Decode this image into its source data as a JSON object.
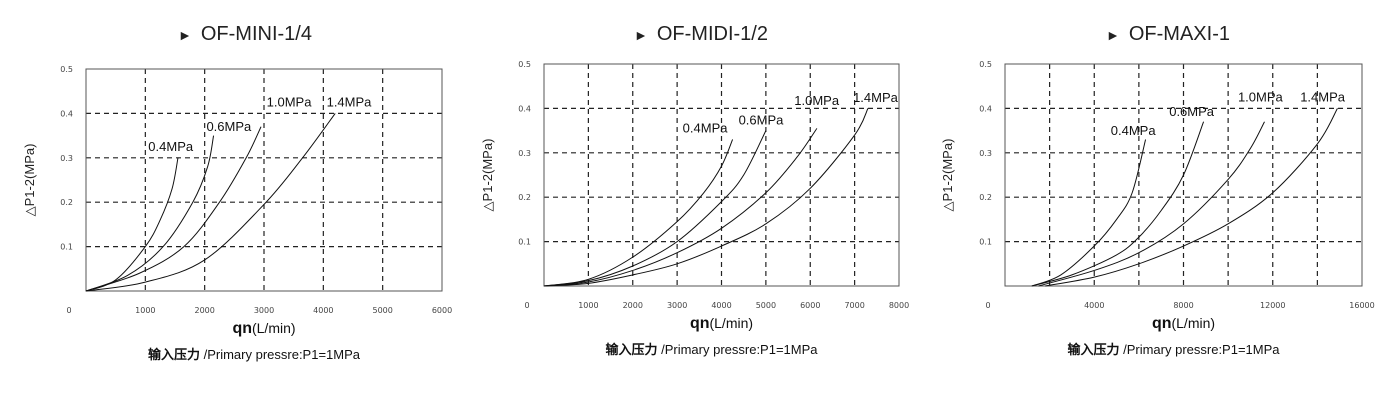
{
  "chart_data": [
    {
      "type": "line",
      "title": "OF-MINI-1/4",
      "title_marker": "►",
      "xlabel_bold": "qn",
      "xlabel_unit": "(L/min)",
      "ylabel": "△P1-2(MPa)",
      "caption_bold": "输入压力",
      "caption": " /Primary pressre:P1=1MPa",
      "xlim": [
        0,
        6000
      ],
      "ylim": [
        0,
        0.5
      ],
      "xgrid_step": 1000,
      "xticks": [
        "0",
        "1000",
        "2000",
        "3000",
        "4000",
        "5000",
        "6000"
      ],
      "xtick_values": [
        0,
        1000,
        2000,
        3000,
        4000,
        5000,
        6000
      ],
      "yticks": [
        "0.1",
        "0.2",
        "0.3",
        "0.4",
        "0.5"
      ],
      "ytick_values": [
        0.1,
        0.2,
        0.3,
        0.4,
        0.5
      ],
      "grid": true,
      "series": [
        {
          "name": "0.4MPa",
          "label_at": [
            1050,
            0.315
          ],
          "points": [
            [
              0,
              0
            ],
            [
              500,
              0.025
            ],
            [
              1000,
              0.1
            ],
            [
              1250,
              0.16
            ],
            [
              1450,
              0.23
            ],
            [
              1550,
              0.3
            ]
          ]
        },
        {
          "name": "0.6MPa",
          "label_at": [
            2030,
            0.36
          ],
          "points": [
            [
              0,
              0
            ],
            [
              700,
              0.035
            ],
            [
              1300,
              0.1
            ],
            [
              1800,
              0.2
            ],
            [
              2050,
              0.28
            ],
            [
              2150,
              0.35
            ]
          ]
        },
        {
          "name": "1.0MPa",
          "label_at": [
            3045,
            0.415
          ],
          "points": [
            [
              0,
              0
            ],
            [
              900,
              0.04
            ],
            [
              1650,
              0.1
            ],
            [
              2250,
              0.2
            ],
            [
              2700,
              0.3
            ],
            [
              2950,
              0.37
            ]
          ]
        },
        {
          "name": "1.4MPa",
          "label_at": [
            4055,
            0.415
          ],
          "points": [
            [
              0,
              0
            ],
            [
              1000,
              0.02
            ],
            [
              2000,
              0.07
            ],
            [
              3000,
              0.195
            ],
            [
              3650,
              0.3
            ],
            [
              4200,
              0.4
            ]
          ]
        }
      ]
    },
    {
      "type": "line",
      "title": "OF-MIDI-1/2",
      "title_marker": "►",
      "xlabel_bold": "qn",
      "xlabel_unit": "(L/min)",
      "ylabel": "△P1-2(MPa)",
      "caption_bold": "输入压力",
      "caption": " /Primary pressre:P1=1MPa",
      "xlim": [
        0,
        8000
      ],
      "ylim": [
        0,
        0.5
      ],
      "xgrid_step": 1000,
      "xticks": [
        "0",
        "1000",
        "2000",
        "3000",
        "4000",
        "5000",
        "6000",
        "7000",
        "8000"
      ],
      "xtick_values": [
        0,
        1000,
        2000,
        3000,
        4000,
        5000,
        6000,
        7000,
        8000
      ],
      "yticks": [
        "0.1",
        "0.2",
        "0.3",
        "0.4",
        "0.5"
      ],
      "ytick_values": [
        0.1,
        0.2,
        0.3,
        0.4,
        0.5
      ],
      "grid": true,
      "series": [
        {
          "name": "0.4MPa",
          "label_at": [
            3125,
            0.346
          ],
          "points": [
            [
              0,
              0
            ],
            [
              1000,
              0.015
            ],
            [
              2000,
              0.065
            ],
            [
              3000,
              0.145
            ],
            [
              3600,
              0.21
            ],
            [
              4000,
              0.27
            ],
            [
              4250,
              0.33
            ]
          ]
        },
        {
          "name": "0.6MPa",
          "label_at": [
            4385,
            0.364
          ],
          "points": [
            [
              0,
              0
            ],
            [
              1000,
              0.012
            ],
            [
              2000,
              0.045
            ],
            [
              3000,
              0.1
            ],
            [
              4000,
              0.19
            ],
            [
              4500,
              0.25
            ],
            [
              5000,
              0.35
            ]
          ]
        },
        {
          "name": "1.0MPa",
          "label_at": [
            5640,
            0.408
          ],
          "points": [
            [
              0,
              0
            ],
            [
              1000,
              0.009
            ],
            [
              2000,
              0.035
            ],
            [
              3000,
              0.075
            ],
            [
              4000,
              0.13
            ],
            [
              5000,
              0.21
            ],
            [
              5700,
              0.29
            ],
            [
              6150,
              0.355
            ]
          ]
        },
        {
          "name": "1.4MPa",
          "label_at": [
            6965,
            0.414
          ],
          "points": [
            [
              0,
              0
            ],
            [
              1000,
              0.006
            ],
            [
              2000,
              0.025
            ],
            [
              3000,
              0.05
            ],
            [
              4000,
              0.09
            ],
            [
              5000,
              0.14
            ],
            [
              6000,
              0.22
            ],
            [
              7000,
              0.34
            ],
            [
              7300,
              0.4
            ]
          ]
        }
      ]
    },
    {
      "type": "line",
      "title": "OF-MAXI-1",
      "title_marker": "►",
      "xlabel_bold": "qn",
      "xlabel_unit": "(L/min)",
      "ylabel": "△P1-2(MPa)",
      "caption_bold": "输入压力",
      "caption": " /Primary pressre:P1=1MPa",
      "xlim": [
        0,
        16000
      ],
      "ylim": [
        0,
        0.5
      ],
      "xgrid_step": 2000,
      "xticks": [
        "0",
        "4000",
        "8000",
        "12000",
        "16000"
      ],
      "xtick_values": [
        0,
        4000,
        8000,
        12000,
        16000
      ],
      "yticks": [
        "0.1",
        "0.2",
        "0.3",
        "0.4",
        "0.5"
      ],
      "ytick_values": [
        0.1,
        0.2,
        0.3,
        0.4,
        0.5
      ],
      "grid": true,
      "series": [
        {
          "name": "0.4MPa",
          "label_at": [
            4740,
            0.34
          ],
          "points": [
            [
              1200,
              0
            ],
            [
              2500,
              0.025
            ],
            [
              4000,
              0.09
            ],
            [
              5000,
              0.15
            ],
            [
              5700,
              0.21
            ],
            [
              6300,
              0.33
            ]
          ]
        },
        {
          "name": "0.6MPa",
          "label_at": [
            7360,
            0.383
          ],
          "points": [
            [
              1200,
              0
            ],
            [
              3000,
              0.025
            ],
            [
              5000,
              0.07
            ],
            [
              6000,
              0.11
            ],
            [
              7000,
              0.17
            ],
            [
              8000,
              0.25
            ],
            [
              8900,
              0.37
            ]
          ]
        },
        {
          "name": "1.0MPa",
          "label_at": [
            10440,
            0.415
          ],
          "points": [
            [
              1500,
              0
            ],
            [
              4000,
              0.035
            ],
            [
              6000,
              0.075
            ],
            [
              8000,
              0.14
            ],
            [
              10000,
              0.24
            ],
            [
              11000,
              0.31
            ],
            [
              11630,
              0.37
            ]
          ]
        },
        {
          "name": "1.4MPa",
          "label_at": [
            13230,
            0.415
          ],
          "points": [
            [
              1800,
              0
            ],
            [
              4000,
              0.02
            ],
            [
              6000,
              0.05
            ],
            [
              8000,
              0.09
            ],
            [
              10000,
              0.14
            ],
            [
              12000,
              0.21
            ],
            [
              14000,
              0.32
            ],
            [
              14900,
              0.4
            ]
          ]
        }
      ]
    }
  ]
}
